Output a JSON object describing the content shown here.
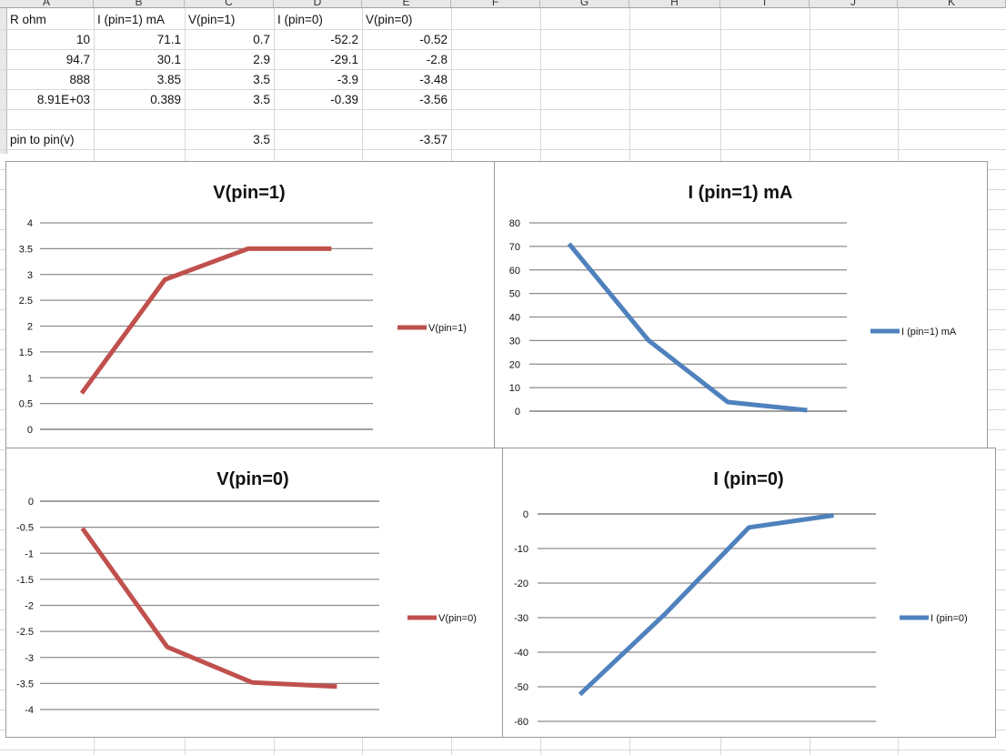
{
  "sheet": {
    "columns": [
      "A",
      "B",
      "C",
      "D",
      "E",
      "F",
      "G",
      "H",
      "I",
      "J",
      "K"
    ],
    "headers": [
      "R ohm",
      "I (pin=1) mA",
      "V(pin=1)",
      "I (pin=0)",
      "V(pin=0)"
    ],
    "rows": [
      [
        "10",
        "71.1",
        "0.7",
        "-52.2",
        "-0.52"
      ],
      [
        "94.7",
        "30.1",
        "2.9",
        "-29.1",
        "-2.8"
      ],
      [
        "888",
        "3.85",
        "3.5",
        "-3.9",
        "-3.48"
      ],
      [
        "8.91E+03",
        "0.389",
        "3.5",
        "-0.39",
        "-3.56"
      ]
    ],
    "pin_row": {
      "label": "pin to pin(v)",
      "v1": "3.5",
      "v0": "-3.57"
    }
  },
  "chart_data": [
    {
      "type": "line",
      "title": "V(pin=1)",
      "color": "#c0504d",
      "ylim": [
        0,
        4
      ],
      "yticks": [
        0,
        0.5,
        1,
        1.5,
        2,
        2.5,
        3,
        3.5,
        4
      ],
      "ytick_labels": [
        "0",
        "0.5",
        "1",
        "1.5",
        "2",
        "2.5",
        "3",
        "3.5",
        "4"
      ],
      "series": [
        {
          "name": "V(pin=1)",
          "values": [
            0.7,
            2.9,
            3.5,
            3.5
          ]
        }
      ],
      "legend": "right",
      "grid": true
    },
    {
      "type": "line",
      "title": "I (pin=1) mA",
      "color": "#4f81bd",
      "ylim": [
        0,
        80
      ],
      "yticks": [
        0,
        10,
        20,
        30,
        40,
        50,
        60,
        70,
        80
      ],
      "ytick_labels": [
        "0",
        "10",
        "20",
        "30",
        "40",
        "50",
        "60",
        "70",
        "80"
      ],
      "series": [
        {
          "name": "I (pin=1) mA",
          "values": [
            71.1,
            30.1,
            3.85,
            0.389
          ]
        }
      ],
      "legend": "right",
      "grid": true
    },
    {
      "type": "line",
      "title": "V(pin=0)",
      "color": "#c0504d",
      "ylim": [
        -4,
        0
      ],
      "yticks": [
        0,
        -0.5,
        -1,
        -1.5,
        -2,
        -2.5,
        -3,
        -3.5,
        -4
      ],
      "ytick_labels": [
        "0",
        "-0.5",
        "-1",
        "-1.5",
        "-2",
        "-2.5",
        "-3",
        "-3.5",
        "-4"
      ],
      "series": [
        {
          "name": "V(pin=0)",
          "values": [
            -0.52,
            -2.8,
            -3.48,
            -3.56
          ]
        }
      ],
      "legend": "right",
      "grid": true
    },
    {
      "type": "line",
      "title": "I (pin=0)",
      "color": "#4f81bd",
      "ylim": [
        -60,
        0
      ],
      "yticks": [
        0,
        -10,
        -20,
        -30,
        -40,
        -50,
        -60
      ],
      "ytick_labels": [
        "0",
        "-10",
        "-20",
        "-30",
        "-40",
        "-50",
        "-60"
      ],
      "series": [
        {
          "name": "I (pin=0)",
          "values": [
            -52.2,
            -29.1,
            -3.9,
            -0.39
          ]
        }
      ],
      "legend": "right",
      "grid": true
    }
  ]
}
